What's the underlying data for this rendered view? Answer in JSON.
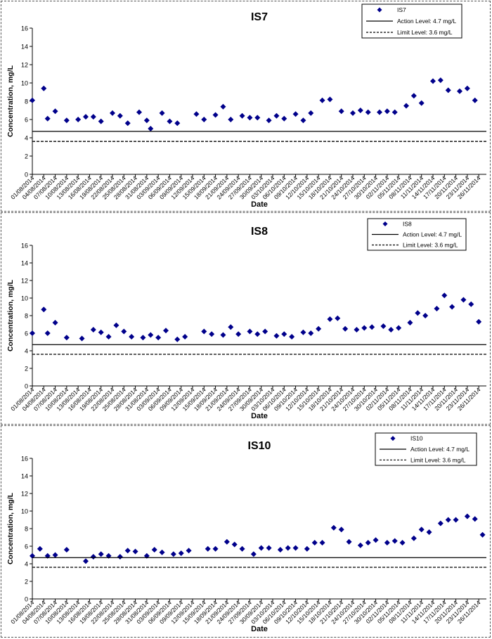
{
  "chart_data": [
    {
      "type": "scatter",
      "title": "IS7",
      "xlabel": "Date",
      "ylabel": "Concentration, mg/L",
      "ylim": [
        0,
        16
      ],
      "yticks": [
        "0",
        "2",
        "4",
        "6",
        "8",
        "10",
        "12",
        "14",
        "16"
      ],
      "grid": false,
      "legend_position": "top-right",
      "x_tick_labels": [
        "01/08/2014",
        "04/08/2014",
        "07/08/2014",
        "10/08/2014",
        "13/08/2014",
        "16/08/2014",
        "19/08/2014",
        "22/08/2014",
        "25/08/2014",
        "28/08/2014",
        "31/08/2014",
        "03/09/2014",
        "06/09/2014",
        "09/09/2014",
        "12/09/2014",
        "15/09/2014",
        "18/09/2014",
        "21/09/2014",
        "24/09/2014",
        "27/09/2014",
        "30/09/2014",
        "03/10/2014",
        "06/10/2014",
        "09/10/2014",
        "12/10/2014",
        "15/10/2014",
        "18/10/2014",
        "21/10/2014",
        "24/10/2014",
        "27/10/2014",
        "30/10/2014",
        "02/11/2014",
        "05/11/2014",
        "08/11/2014",
        "11/11/2014",
        "14/11/2014",
        "17/11/2014",
        "20/11/2014",
        "23/11/2014",
        "26/11/2014"
      ],
      "series": [
        {
          "name": "IS7",
          "marker": "diamond",
          "color": "#00008b",
          "points": [
            [
              "01/08/2014",
              8.1
            ],
            [
              "04/08/2014",
              9.4
            ],
            [
              "05/08/2014",
              6.1
            ],
            [
              "07/08/2014",
              6.9
            ],
            [
              "10/08/2014",
              5.9
            ],
            [
              "13/08/2014",
              6.0
            ],
            [
              "15/08/2014",
              6.3
            ],
            [
              "17/08/2014",
              6.3
            ],
            [
              "19/08/2014",
              5.8
            ],
            [
              "22/08/2014",
              6.7
            ],
            [
              "24/08/2014",
              6.4
            ],
            [
              "26/08/2014",
              5.6
            ],
            [
              "29/08/2014",
              6.8
            ],
            [
              "31/08/2014",
              5.9
            ],
            [
              "01/09/2014",
              5.0
            ],
            [
              "04/09/2014",
              6.7
            ],
            [
              "06/09/2014",
              5.8
            ],
            [
              "08/09/2014",
              5.6
            ],
            [
              "13/09/2014",
              6.6
            ],
            [
              "15/09/2014",
              6.0
            ],
            [
              "18/09/2014",
              6.5
            ],
            [
              "20/09/2014",
              7.4
            ],
            [
              "22/09/2014",
              6.0
            ],
            [
              "25/09/2014",
              6.4
            ],
            [
              "27/09/2014",
              6.2
            ],
            [
              "29/09/2014",
              6.2
            ],
            [
              "02/10/2014",
              5.9
            ],
            [
              "04/10/2014",
              6.4
            ],
            [
              "06/10/2014",
              6.1
            ],
            [
              "09/10/2014",
              6.6
            ],
            [
              "11/10/2014",
              5.9
            ],
            [
              "13/10/2014",
              6.7
            ],
            [
              "16/10/2014",
              8.1
            ],
            [
              "18/10/2014",
              8.2
            ],
            [
              "21/10/2014",
              6.9
            ],
            [
              "24/10/2014",
              6.7
            ],
            [
              "26/10/2014",
              7.0
            ],
            [
              "28/10/2014",
              6.8
            ],
            [
              "31/10/2014",
              6.8
            ],
            [
              "02/11/2014",
              6.9
            ],
            [
              "04/11/2014",
              6.8
            ],
            [
              "07/11/2014",
              7.5
            ],
            [
              "09/11/2014",
              8.6
            ],
            [
              "11/11/2014",
              7.8
            ],
            [
              "14/11/2014",
              10.2
            ],
            [
              "16/11/2014",
              10.3
            ],
            [
              "18/11/2014",
              9.2
            ],
            [
              "21/11/2014",
              9.1
            ],
            [
              "23/11/2014",
              9.4
            ],
            [
              "25/11/2014",
              8.1
            ]
          ]
        },
        {
          "name": "Action Level: 4.7 mg/L",
          "line": "solid",
          "value": 4.7
        },
        {
          "name": "Limit Level: 3.6 mg/L",
          "line": "dashed",
          "value": 3.6
        }
      ]
    },
    {
      "type": "scatter",
      "title": "IS8",
      "xlabel": "Date",
      "ylabel": "Concentration, mg/L",
      "ylim": [
        0,
        16
      ],
      "yticks": [
        "0",
        "2",
        "4",
        "6",
        "8",
        "10",
        "12",
        "14",
        "16"
      ],
      "grid": false,
      "legend_position": "top-right",
      "x_tick_labels": [
        "01/08/2014",
        "04/08/2014",
        "07/08/2014",
        "10/08/2014",
        "13/08/2014",
        "16/08/2014",
        "19/08/2014",
        "22/08/2014",
        "25/08/2014",
        "28/08/2014",
        "31/08/2014",
        "03/09/2014",
        "06/09/2014",
        "09/09/2014",
        "12/09/2014",
        "15/09/2014",
        "18/09/2014",
        "21/09/2014",
        "24/09/2014",
        "27/09/2014",
        "30/09/2014",
        "03/10/2014",
        "06/10/2014",
        "09/10/2014",
        "12/10/2014",
        "15/10/2014",
        "18/10/2014",
        "21/10/2014",
        "24/10/2014",
        "27/10/2014",
        "30/10/2014",
        "02/11/2014",
        "05/11/2014",
        "08/11/2014",
        "11/11/2014",
        "14/11/2014",
        "17/11/2014",
        "20/11/2014",
        "23/11/2014",
        "26/11/2014"
      ],
      "series": [
        {
          "name": "IS8",
          "marker": "diamond",
          "color": "#00008b",
          "points": [
            [
              "01/08/2014",
              6.0
            ],
            [
              "04/08/2014",
              8.7
            ],
            [
              "05/08/2014",
              6.0
            ],
            [
              "07/08/2014",
              7.2
            ],
            [
              "10/08/2014",
              5.5
            ],
            [
              "14/08/2014",
              5.4
            ],
            [
              "17/08/2014",
              6.4
            ],
            [
              "19/08/2014",
              6.1
            ],
            [
              "21/08/2014",
              5.6
            ],
            [
              "23/08/2014",
              6.9
            ],
            [
              "25/08/2014",
              6.2
            ],
            [
              "27/08/2014",
              5.6
            ],
            [
              "30/08/2014",
              5.5
            ],
            [
              "01/09/2014",
              5.8
            ],
            [
              "03/09/2014",
              5.5
            ],
            [
              "05/09/2014",
              6.3
            ],
            [
              "08/09/2014",
              5.3
            ],
            [
              "10/09/2014",
              5.6
            ],
            [
              "15/09/2014",
              6.2
            ],
            [
              "17/09/2014",
              5.9
            ],
            [
              "20/09/2014",
              5.8
            ],
            [
              "22/09/2014",
              6.7
            ],
            [
              "24/09/2014",
              5.9
            ],
            [
              "27/09/2014",
              6.2
            ],
            [
              "29/09/2014",
              5.9
            ],
            [
              "01/10/2014",
              6.2
            ],
            [
              "04/10/2014",
              5.7
            ],
            [
              "06/10/2014",
              5.9
            ],
            [
              "08/10/2014",
              5.6
            ],
            [
              "11/10/2014",
              6.1
            ],
            [
              "13/10/2014",
              6.0
            ],
            [
              "15/10/2014",
              6.5
            ],
            [
              "18/10/2014",
              7.6
            ],
            [
              "20/10/2014",
              7.7
            ],
            [
              "22/10/2014",
              6.5
            ],
            [
              "25/10/2014",
              6.4
            ],
            [
              "27/10/2014",
              6.6
            ],
            [
              "29/10/2014",
              6.7
            ],
            [
              "01/11/2014",
              6.8
            ],
            [
              "03/11/2014",
              6.4
            ],
            [
              "05/11/2014",
              6.6
            ],
            [
              "08/11/2014",
              7.2
            ],
            [
              "10/11/2014",
              8.3
            ],
            [
              "12/11/2014",
              8.0
            ],
            [
              "15/11/2014",
              8.8
            ],
            [
              "17/11/2014",
              10.3
            ],
            [
              "19/11/2014",
              9.0
            ],
            [
              "22/11/2014",
              9.8
            ],
            [
              "24/11/2014",
              9.3
            ],
            [
              "26/11/2014",
              7.3
            ]
          ]
        },
        {
          "name": "Action Level: 4.7 mg/L",
          "line": "solid",
          "value": 4.7
        },
        {
          "name": "Limit Level: 3.6 mg/L",
          "line": "dashed",
          "value": 3.6
        }
      ]
    },
    {
      "type": "scatter",
      "title": "IS10",
      "xlabel": "Date",
      "ylabel": "Concentration, mg/L",
      "ylim": [
        0,
        16
      ],
      "yticks": [
        "0",
        "2",
        "4",
        "6",
        "8",
        "10",
        "12",
        "14",
        "16"
      ],
      "grid": false,
      "legend_position": "top-right",
      "x_tick_labels": [
        "01/08/2014",
        "04/08/2014",
        "07/08/2014",
        "10/08/2014",
        "13/08/2014",
        "16/08/2014",
        "19/08/2014",
        "22/08/2014",
        "25/08/2014",
        "28/08/2014",
        "31/08/2014",
        "03/09/2014",
        "06/09/2014",
        "09/09/2014",
        "12/09/2014",
        "15/09/2014",
        "18/09/2014",
        "21/09/2014",
        "24/09/2014",
        "27/09/2014",
        "30/09/2014",
        "03/10/2014",
        "06/10/2014",
        "09/10/2014",
        "12/10/2014",
        "15/10/2014",
        "18/10/2014",
        "21/10/2014",
        "24/10/2014",
        "27/10/2014",
        "30/10/2014",
        "02/11/2014",
        "05/11/2014",
        "08/11/2014",
        "11/11/2014",
        "14/11/2014",
        "17/11/2014",
        "20/11/2014",
        "23/11/2014",
        "26/11/2014"
      ],
      "series": [
        {
          "name": "IS10",
          "marker": "diamond",
          "color": "#00008b",
          "points": [
            [
              "01/08/2014",
              4.9
            ],
            [
              "03/08/2014",
              5.7
            ],
            [
              "05/08/2014",
              4.9
            ],
            [
              "07/08/2014",
              5.0
            ],
            [
              "10/08/2014",
              5.6
            ],
            [
              "15/08/2014",
              4.3
            ],
            [
              "17/08/2014",
              4.8
            ],
            [
              "19/08/2014",
              5.1
            ],
            [
              "21/08/2014",
              4.9
            ],
            [
              "24/08/2014",
              4.8
            ],
            [
              "26/08/2014",
              5.5
            ],
            [
              "28/08/2014",
              5.4
            ],
            [
              "31/08/2014",
              4.9
            ],
            [
              "02/09/2014",
              5.6
            ],
            [
              "04/09/2014",
              5.3
            ],
            [
              "07/09/2014",
              5.1
            ],
            [
              "09/09/2014",
              5.2
            ],
            [
              "11/09/2014",
              5.5
            ],
            [
              "16/09/2014",
              5.7
            ],
            [
              "18/09/2014",
              5.7
            ],
            [
              "21/09/2014",
              6.5
            ],
            [
              "23/09/2014",
              6.2
            ],
            [
              "25/09/2014",
              5.7
            ],
            [
              "28/09/2014",
              5.1
            ],
            [
              "30/09/2014",
              5.8
            ],
            [
              "02/10/2014",
              5.8
            ],
            [
              "05/10/2014",
              5.6
            ],
            [
              "07/10/2014",
              5.8
            ],
            [
              "09/10/2014",
              5.8
            ],
            [
              "12/10/2014",
              5.7
            ],
            [
              "14/10/2014",
              6.4
            ],
            [
              "16/10/2014",
              6.4
            ],
            [
              "19/10/2014",
              8.1
            ],
            [
              "21/10/2014",
              7.9
            ],
            [
              "23/10/2014",
              6.5
            ],
            [
              "26/10/2014",
              6.1
            ],
            [
              "28/10/2014",
              6.4
            ],
            [
              "30/10/2014",
              6.7
            ],
            [
              "02/11/2014",
              6.4
            ],
            [
              "04/11/2014",
              6.6
            ],
            [
              "06/11/2014",
              6.4
            ],
            [
              "09/11/2014",
              6.9
            ],
            [
              "11/11/2014",
              7.9
            ],
            [
              "13/11/2014",
              7.6
            ],
            [
              "16/11/2014",
              8.6
            ],
            [
              "18/11/2014",
              9.0
            ],
            [
              "20/11/2014",
              9.0
            ],
            [
              "23/11/2014",
              9.4
            ],
            [
              "25/11/2014",
              9.1
            ],
            [
              "27/11/2014",
              7.3
            ]
          ]
        },
        {
          "name": "Action Level: 4.7 mg/L",
          "line": "solid",
          "value": 4.7
        },
        {
          "name": "Limit Level: 3.6 mg/L",
          "line": "dashed",
          "value": 3.6
        }
      ]
    }
  ]
}
